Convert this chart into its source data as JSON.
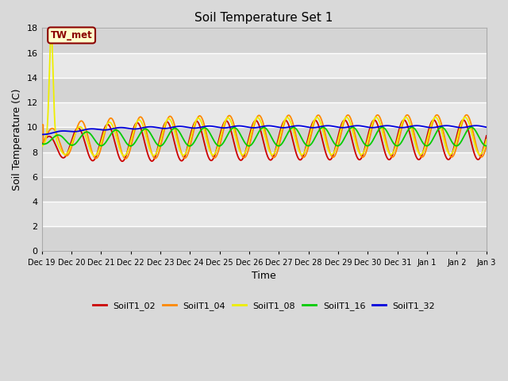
{
  "title": "Soil Temperature Set 1",
  "xlabel": "Time",
  "ylabel": "Soil Temperature (C)",
  "ylim": [
    0,
    18
  ],
  "yticks": [
    0,
    2,
    4,
    6,
    8,
    10,
    12,
    14,
    16,
    18
  ],
  "xlim": [
    0,
    15
  ],
  "series_colors": {
    "SoilT1_02": "#cc0000",
    "SoilT1_04": "#ff8800",
    "SoilT1_08": "#eeee00",
    "SoilT1_16": "#00cc00",
    "SoilT1_32": "#0000dd"
  },
  "annotation_text": "TW_met",
  "bg_color": "#d9d9d9",
  "plot_bg_light": "#e8e8e8",
  "plot_bg_dark": "#d4d4d4",
  "grid_color": "#ffffff",
  "xtick_labels": [
    "Dec 19",
    "Dec 20",
    "Dec 21",
    "Dec 22",
    "Dec 23",
    "Dec 24",
    "Dec 25",
    "Dec 26",
    "Dec 27",
    "Dec 28",
    "Dec 29",
    "Dec 30",
    "Dec 31",
    "Jan 1",
    "Jan 2",
    "Jan 3"
  ],
  "linewidth": 1.3,
  "figsize": [
    6.4,
    4.8
  ],
  "dpi": 100
}
